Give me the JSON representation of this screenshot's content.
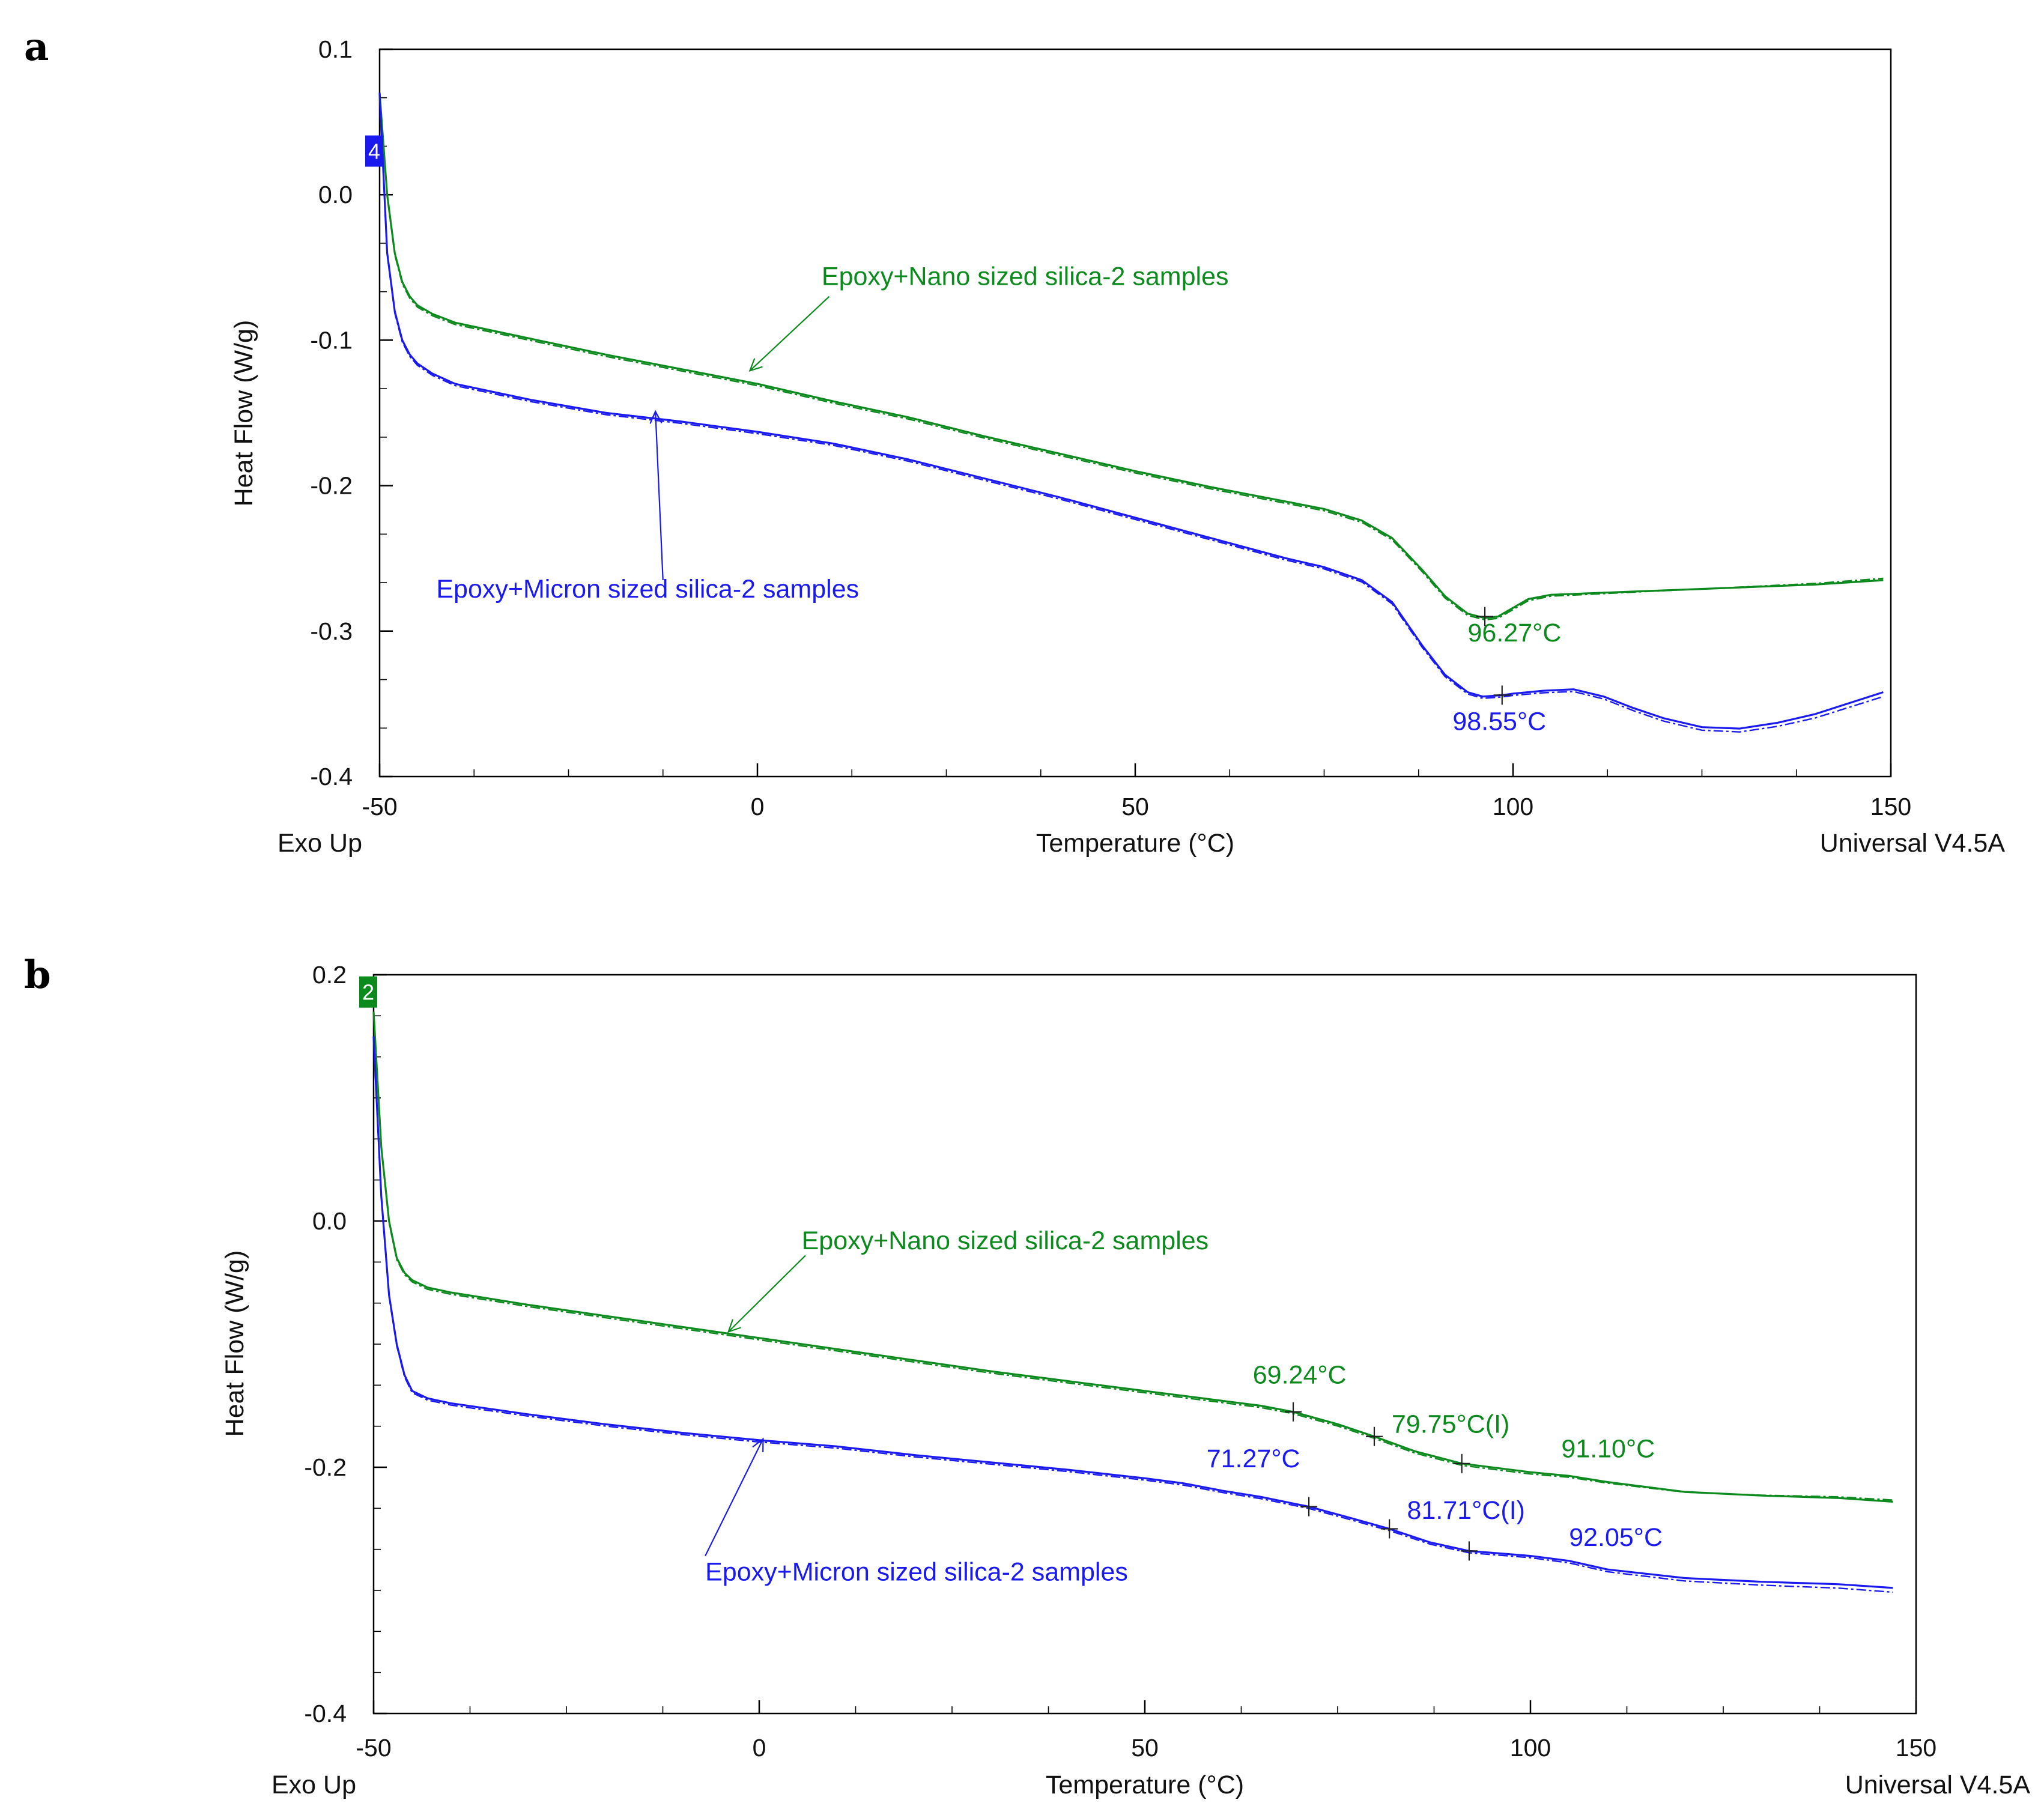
{
  "figure": {
    "panel_a": "a",
    "panel_b": "b"
  },
  "colors": {
    "nano": "#0c8a1e",
    "micron": "#1a1aee",
    "axis": "#000000"
  },
  "chart_data": [
    {
      "type": "line",
      "panel": "a",
      "xlabel": "Temperature (°C)",
      "ylabel": "Heat Flow (W/g)",
      "footer_left": "Exo Up",
      "footer_right": "Universal V4.5A",
      "xlim": [
        -50,
        150
      ],
      "ylim": [
        -0.4,
        0.1
      ],
      "xticks": [
        -50,
        0,
        50,
        100,
        150
      ],
      "xtick_labels": [
        "-50",
        "0",
        "50",
        "100",
        "150"
      ],
      "yticks": [
        -0.4,
        -0.3,
        -0.2,
        -0.1,
        0.0,
        0.1
      ],
      "ytick_labels": [
        "-0.4",
        "-0.3",
        "-0.2",
        "-0.1",
        "0.0",
        "0.1"
      ],
      "badge": {
        "text": "4",
        "color": "#1a1aee",
        "y": 0.03
      },
      "series": [
        {
          "name": "Epoxy+Nano sized silica-2 samples",
          "color": "#0c8a1e",
          "x": [
            -50,
            -49,
            -48,
            -47,
            -46,
            -45,
            -43,
            -40,
            -30,
            -20,
            -10,
            0,
            10,
            20,
            30,
            40,
            50,
            60,
            70,
            75,
            80,
            84,
            88,
            91,
            94,
            96.27,
            98,
            100,
            102,
            105,
            110,
            120,
            130,
            140,
            149
          ],
          "y": [
            0.07,
            0.0,
            -0.04,
            -0.06,
            -0.07,
            -0.076,
            -0.082,
            -0.088,
            -0.099,
            -0.11,
            -0.12,
            -0.13,
            -0.142,
            -0.153,
            -0.166,
            -0.178,
            -0.19,
            -0.201,
            -0.211,
            -0.216,
            -0.224,
            -0.236,
            -0.258,
            -0.276,
            -0.288,
            -0.291,
            -0.29,
            -0.284,
            -0.278,
            -0.275,
            -0.274,
            -0.272,
            -0.27,
            -0.268,
            -0.265
          ]
        },
        {
          "name": "Epoxy+Micron sized silica-2 samples",
          "color": "#1a1aee",
          "x": [
            -50,
            -49,
            -48,
            -47,
            -46,
            -45,
            -43,
            -40,
            -30,
            -20,
            -10,
            0,
            10,
            20,
            30,
            40,
            50,
            60,
            70,
            75,
            80,
            84,
            88,
            91,
            94,
            96,
            98.55,
            100,
            104,
            108,
            112,
            116,
            120,
            125,
            130,
            135,
            140,
            149
          ],
          "y": [
            0.07,
            -0.04,
            -0.08,
            -0.1,
            -0.11,
            -0.116,
            -0.123,
            -0.13,
            -0.141,
            -0.15,
            -0.156,
            -0.163,
            -0.171,
            -0.182,
            -0.195,
            -0.208,
            -0.222,
            -0.236,
            -0.25,
            -0.256,
            -0.265,
            -0.28,
            -0.31,
            -0.33,
            -0.342,
            -0.345,
            -0.344,
            -0.343,
            -0.341,
            -0.34,
            -0.345,
            -0.353,
            -0.36,
            -0.366,
            -0.367,
            -0.363,
            -0.357,
            -0.342
          ]
        }
      ],
      "annotations": [
        {
          "text": "Epoxy+Nano sized silica-2 samples",
          "series": 0,
          "text_x": 8.5,
          "text_y": -0.062,
          "arrow_from": [
            9.5,
            -0.07
          ],
          "arrow_to": [
            -1,
            -0.121
          ]
        },
        {
          "text": "Epoxy+Micron sized silica-2 samples",
          "series": 1,
          "text_x": -42.5,
          "text_y": -0.277,
          "arrow_from": [
            -12.5,
            -0.265
          ],
          "arrow_to": [
            -13.5,
            -0.149
          ]
        },
        {
          "text": "96.27°C",
          "series": 0,
          "text_x": 94,
          "text_y": -0.307,
          "mark": [
            96.27,
            -0.29
          ]
        },
        {
          "text": "98.55°C",
          "series": 1,
          "text_x": 92,
          "text_y": -0.368,
          "mark": [
            98.55,
            -0.344
          ]
        }
      ]
    },
    {
      "type": "line",
      "panel": "b",
      "xlabel": "Temperature (°C)",
      "ylabel": "Heat Flow (W/g)",
      "footer_left": "Exo Up",
      "footer_right": "Universal V4.5A",
      "xlim": [
        -50,
        150
      ],
      "ylim": [
        -0.4,
        0.2
      ],
      "xticks": [
        -50,
        0,
        50,
        100,
        150
      ],
      "xtick_labels": [
        "-50",
        "0",
        "50",
        "100",
        "150"
      ],
      "yticks": [
        -0.4,
        -0.2,
        0.0,
        0.2
      ],
      "ytick_labels": [
        "-0.4",
        "-0.2",
        "0.0",
        "0.2"
      ],
      "badge": {
        "text": "2",
        "color": "#0c8a1e",
        "y": 0.186
      },
      "series": [
        {
          "name": "Epoxy+Nano sized silica-2 samples",
          "color": "#0c8a1e",
          "x": [
            -50,
            -49,
            -48,
            -47,
            -46,
            -45,
            -43,
            -40,
            -30,
            -20,
            -10,
            0,
            10,
            20,
            30,
            40,
            50,
            55,
            60,
            65,
            69.24,
            75,
            79.75,
            85,
            91.1,
            100,
            105,
            110,
            120,
            130,
            140,
            147
          ],
          "y": [
            0.17,
            0.06,
            0.0,
            -0.03,
            -0.042,
            -0.048,
            -0.054,
            -0.058,
            -0.068,
            -0.077,
            -0.086,
            -0.095,
            -0.104,
            -0.113,
            -0.122,
            -0.13,
            -0.138,
            -0.142,
            -0.146,
            -0.15,
            -0.155,
            -0.165,
            -0.175,
            -0.187,
            -0.197,
            -0.204,
            -0.207,
            -0.212,
            -0.22,
            -0.223,
            -0.225,
            -0.228
          ]
        },
        {
          "name": "Epoxy+Micron sized silica-2 samples",
          "color": "#1a1aee",
          "x": [
            -50,
            -49,
            -48,
            -47,
            -46,
            -45,
            -43,
            -40,
            -30,
            -20,
            -10,
            0,
            10,
            20,
            30,
            40,
            50,
            55,
            60,
            65,
            71.27,
            76,
            81.71,
            87,
            92.05,
            100,
            105,
            110,
            120,
            130,
            140,
            147
          ],
          "y": [
            0.15,
            0.02,
            -0.06,
            -0.1,
            -0.125,
            -0.138,
            -0.144,
            -0.148,
            -0.157,
            -0.165,
            -0.172,
            -0.178,
            -0.183,
            -0.19,
            -0.196,
            -0.202,
            -0.209,
            -0.213,
            -0.219,
            -0.224,
            -0.232,
            -0.24,
            -0.25,
            -0.261,
            -0.268,
            -0.272,
            -0.276,
            -0.283,
            -0.29,
            -0.293,
            -0.295,
            -0.298
          ]
        }
      ],
      "annotations": [
        {
          "text": "Epoxy+Nano sized silica-2 samples",
          "series": 0,
          "text_x": 5.5,
          "text_y": -0.023,
          "arrow_from": [
            6,
            -0.028
          ],
          "arrow_to": [
            -4,
            -0.09
          ]
        },
        {
          "text": "Epoxy+Micron sized silica-2 samples",
          "series": 1,
          "text_x": -7,
          "text_y": -0.292,
          "arrow_from": [
            -7,
            -0.272
          ],
          "arrow_to": [
            0.5,
            -0.177
          ]
        },
        {
          "text": "69.24°C",
          "series": 0,
          "text_x": 64,
          "text_y": -0.132,
          "mark": [
            69.24,
            -0.155
          ]
        },
        {
          "text": "79.75°C(I)",
          "series": 0,
          "text_x": 82,
          "text_y": -0.172,
          "mark": [
            79.75,
            -0.175
          ]
        },
        {
          "text": "91.10°C",
          "series": 0,
          "text_x": 104,
          "text_y": -0.192,
          "mark": [
            91.1,
            -0.197
          ]
        },
        {
          "text": "71.27°C",
          "series": 1,
          "text_x": 58,
          "text_y": -0.2,
          "mark": [
            71.27,
            -0.232
          ]
        },
        {
          "text": "81.71°C(I)",
          "series": 1,
          "text_x": 84,
          "text_y": -0.242,
          "mark": [
            81.71,
            -0.25
          ]
        },
        {
          "text": "92.05°C",
          "series": 1,
          "text_x": 105,
          "text_y": -0.264,
          "mark": [
            92.05,
            -0.268
          ]
        }
      ]
    }
  ]
}
